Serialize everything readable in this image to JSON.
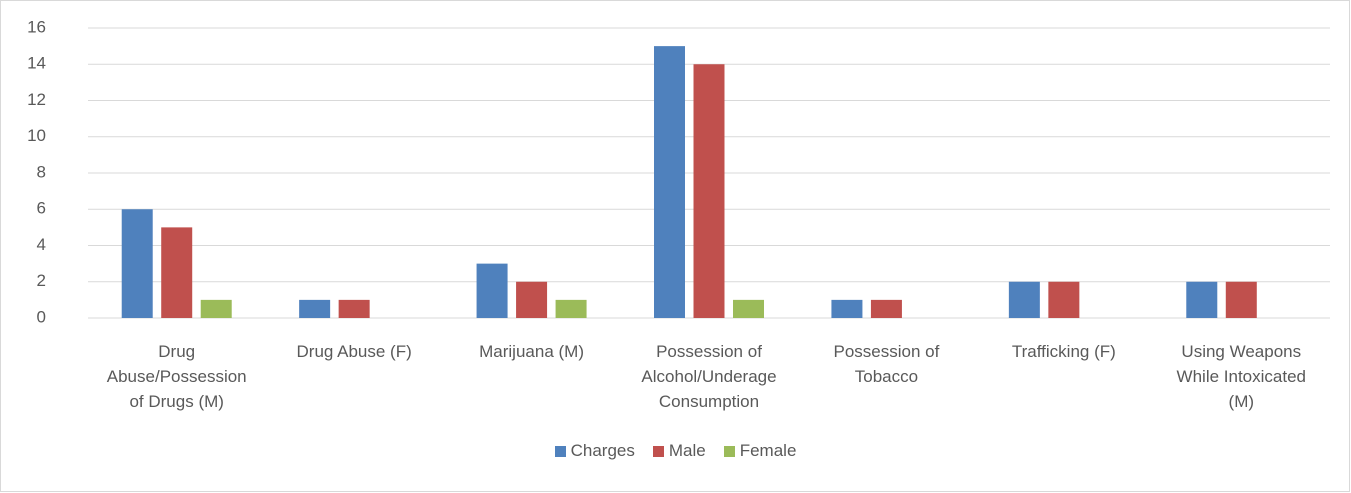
{
  "chart_data": {
    "type": "bar",
    "categories": [
      "Drug Abuse/Possession of Drugs (M)",
      "Drug Abuse (F)",
      "Marijuana (M)",
      "Possession of Alcohol/Underage Consumption",
      "Possession of Tobacco",
      "Trafficking (F)",
      "Using Weapons While Intoxicated (M)"
    ],
    "series": [
      {
        "name": "Charges",
        "color": "#4f81bd",
        "values": [
          6,
          1,
          3,
          15,
          1,
          2,
          2
        ]
      },
      {
        "name": "Male",
        "color": "#c0504d",
        "values": [
          5,
          1,
          2,
          14,
          1,
          2,
          2
        ]
      },
      {
        "name": "Female",
        "color": "#9bbb59",
        "values": [
          1,
          null,
          1,
          1,
          null,
          null,
          null
        ]
      }
    ],
    "ylim": [
      0,
      16
    ],
    "yticks": [
      0,
      2,
      4,
      6,
      8,
      10,
      12,
      14,
      16
    ],
    "grid": true,
    "legend": "bottom"
  }
}
